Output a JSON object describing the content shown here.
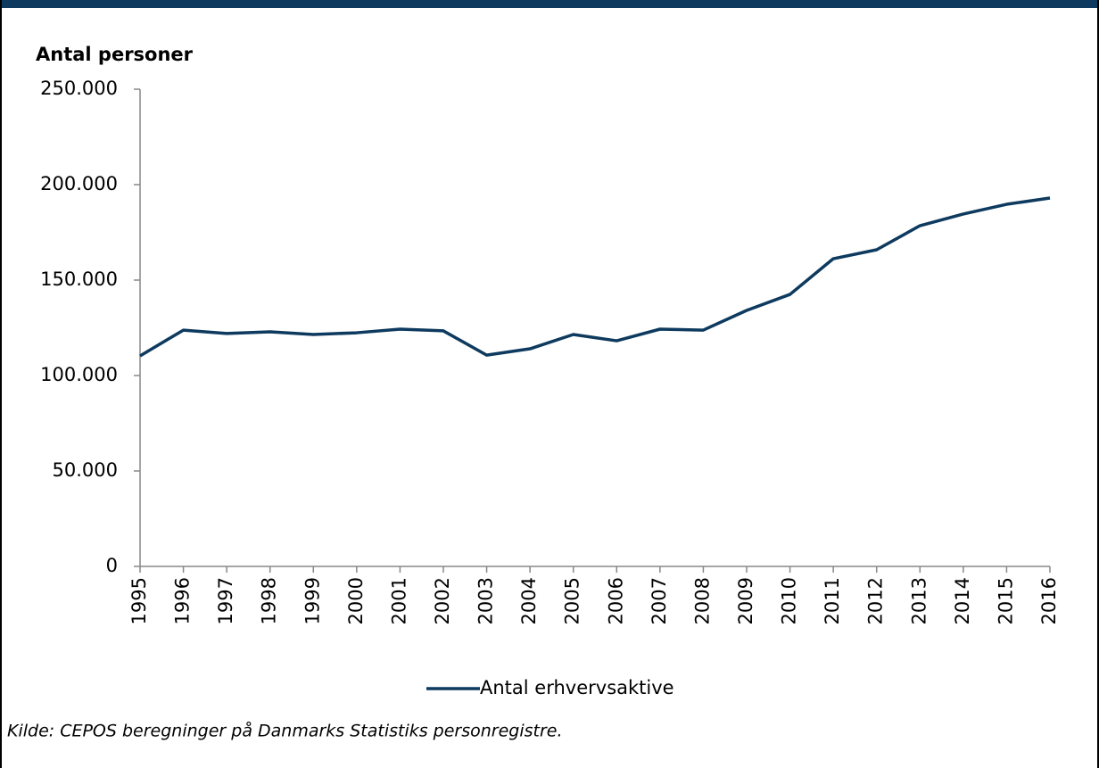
{
  "chart_data": {
    "type": "line",
    "ylabel": "Antal personer",
    "categories": [
      "1995",
      "1996",
      "1997",
      "1998",
      "1999",
      "2000",
      "2001",
      "2002",
      "2003",
      "2004",
      "2005",
      "2006",
      "2007",
      "2008",
      "2009",
      "2010",
      "2011",
      "2012",
      "2013",
      "2014",
      "2015",
      "2016"
    ],
    "series": [
      {
        "name": "Antal erhvervsaktive",
        "color": "#0d3a5e",
        "values": [
          110300,
          123800,
          122000,
          122900,
          121500,
          122400,
          124300,
          123400,
          110700,
          114000,
          121500,
          118200,
          124300,
          123800,
          134100,
          142500,
          161200,
          165900,
          178500,
          184600,
          189700,
          193000
        ]
      }
    ],
    "ylim": [
      0,
      250000
    ],
    "yticks": [
      0,
      {
        "value": 50000,
        "label": "50.000"
      },
      {
        "value": 100000,
        "label": "100.000"
      },
      {
        "value": 150000,
        "label": "150.000"
      },
      {
        "value": 200000,
        "label": "200.000"
      },
      {
        "value": 250000,
        "label": "250.000"
      }
    ],
    "legend": "bottom",
    "source": "Kilde: CEPOS beregninger på Danmarks Statistiks personregistre."
  }
}
